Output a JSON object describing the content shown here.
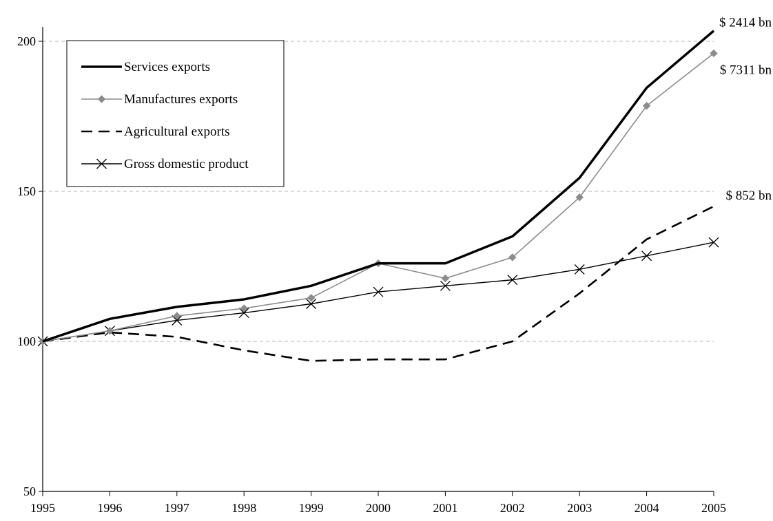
{
  "chart_data": {
    "type": "line",
    "title": "",
    "xlabel": "",
    "ylabel": "",
    "x": [
      1995,
      1996,
      1997,
      1998,
      1999,
      2000,
      2001,
      2002,
      2003,
      2004,
      2005
    ],
    "ylim": [
      50,
      205
    ],
    "yticks": [
      50,
      100,
      150,
      200
    ],
    "grid": "horizontal dashed",
    "legend_position": "top-left",
    "series": [
      {
        "name": "Services exports",
        "style": "thick-solid",
        "color": "#000000",
        "values": [
          100,
          107.5,
          111.5,
          114,
          118.5,
          126,
          126,
          135,
          154.5,
          184.5,
          203.5
        ],
        "end_label": "$ 2414 bn"
      },
      {
        "name": "Manufactures exports",
        "style": "grey-diamond",
        "color": "#8c8c8c",
        "values": [
          100,
          103.5,
          108.5,
          111,
          114.5,
          126,
          121,
          128,
          148,
          178.5,
          196
        ],
        "end_label": "$ 7311 bn"
      },
      {
        "name": "Agricultural exports",
        "style": "dashed",
        "color": "#000000",
        "values": [
          100,
          103,
          101.5,
          97,
          93.5,
          94,
          94,
          100,
          116,
          134,
          145
        ],
        "end_label": "$ 852 bn"
      },
      {
        "name": "Gross domestic product",
        "style": "thin-cross",
        "color": "#000000",
        "values": [
          100,
          103.5,
          107,
          109.5,
          112.5,
          116.5,
          118.5,
          120.5,
          124,
          128.5,
          133
        ],
        "end_label": ""
      }
    ]
  }
}
